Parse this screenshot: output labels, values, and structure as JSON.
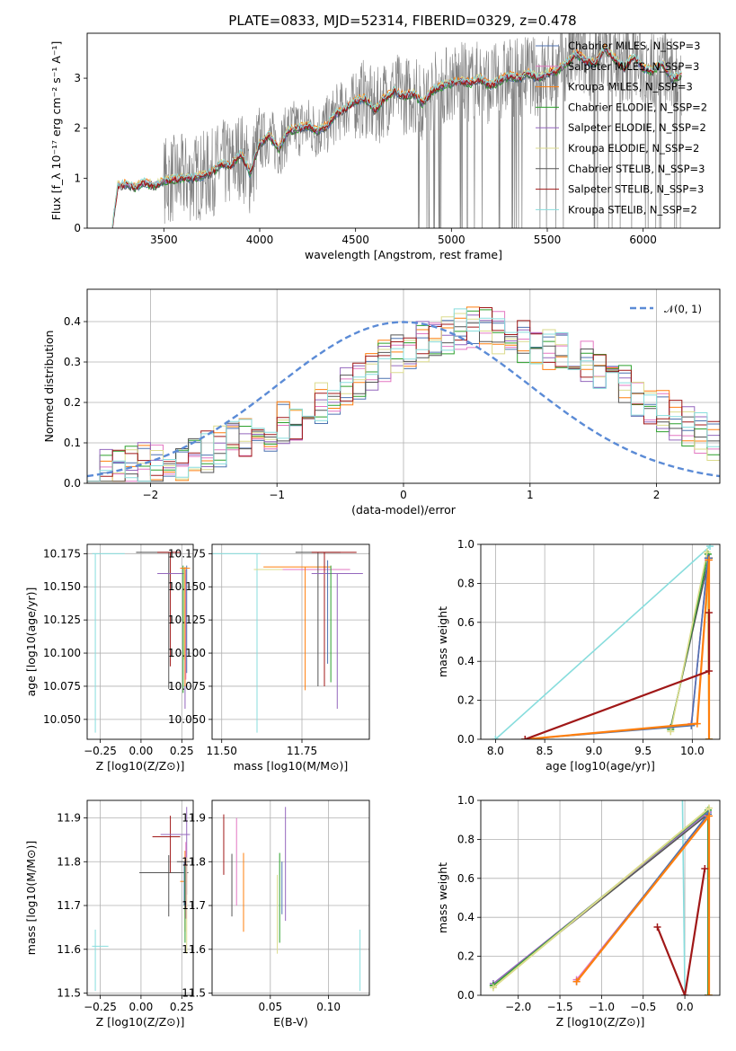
{
  "title": "PLATE=0833, MJD=52314, FIBERID=0329, z=0.478",
  "colors": {
    "Chabrier MILES": "#4c72b0",
    "Salpeter MILES": "#e377c2",
    "Kroupa MILES": "#ff7f0e",
    "Chabrier ELODIE": "#2ca02c",
    "Salpeter ELODIE": "#9467bd",
    "Kroupa ELODIE": "#dbdb8d",
    "Chabrier STELIB": "#555555",
    "Salpeter STELIB": "#a01818",
    "Kroupa STELIB": "#88dddd",
    "data": "#808080",
    "gauss": "#5b8bd6"
  },
  "chart_data": [
    {
      "type": "line",
      "xlabel": "wavelength [Angstrom, rest frame]",
      "ylabel": "Flux [f_λ 10⁻¹⁷ erg cm⁻² s⁻¹ A⁻¹]",
      "xlim": [
        3100,
        6400
      ],
      "ylim": [
        0,
        3.9
      ],
      "xticks": [
        "3500",
        "4000",
        "4500",
        "5000",
        "5500",
        "6000"
      ],
      "yticks": [
        "0",
        "1",
        "2",
        "3"
      ],
      "legend_position": "upper-right",
      "legend": [
        "Chabrier MILES, N_SSP=3",
        "Salpeter MILES, N_SSP=3",
        "Kroupa MILES, N_SSP=3",
        "Chabrier ELODIE, N_SSP=2",
        "Salpeter ELODIE, N_SSP=2",
        "Kroupa ELODIE, N_SSP=2",
        "Chabrier STELIB, N_SSP=3",
        "Salpeter STELIB, N_SSP=3",
        "Kroupa STELIB, N_SSP=2"
      ],
      "model_continuum": {
        "x": [
          3230,
          3260,
          3300,
          3350,
          3400,
          3450,
          3500,
          3550,
          3600,
          3650,
          3700,
          3750,
          3800,
          3850,
          3900,
          3950,
          4000,
          4050,
          4100,
          4150,
          4200,
          4250,
          4300,
          4350,
          4400,
          4450,
          4500,
          4550,
          4600,
          4650,
          4700,
          4750,
          4800,
          4850,
          4900,
          4950,
          5000,
          5050,
          5100,
          5150,
          5200,
          5250,
          5300,
          5350,
          5400,
          5450,
          5500,
          5550,
          5600,
          5650,
          5700,
          5750,
          5800,
          5850,
          5900,
          5950,
          6000,
          6050,
          6100,
          6150,
          6200
        ],
        "y": [
          0.0,
          0.85,
          0.88,
          0.82,
          0.92,
          0.85,
          0.95,
          0.98,
          1.0,
          1.0,
          1.05,
          1.1,
          1.3,
          1.25,
          1.5,
          1.1,
          1.7,
          1.85,
          1.6,
          1.95,
          2.0,
          2.05,
          1.95,
          2.05,
          2.3,
          2.4,
          2.55,
          2.6,
          2.35,
          2.6,
          2.75,
          2.65,
          2.7,
          2.5,
          2.75,
          2.85,
          2.9,
          2.95,
          2.9,
          3.0,
          2.85,
          2.95,
          3.05,
          3.0,
          3.1,
          3.0,
          3.1,
          3.15,
          3.3,
          3.5,
          3.35,
          3.3,
          3.6,
          3.4,
          3.2,
          3.45,
          3.2,
          3.15,
          3.3,
          3.0,
          3.05
        ]
      },
      "data_range": [
        3230,
        6200
      ]
    },
    {
      "type": "histogram",
      "xlabel": "(data-model)/error",
      "ylabel": "Normed distribution",
      "xlim": [
        -2.5,
        2.5
      ],
      "ylim": [
        0,
        0.48
      ],
      "xticks": [
        "−2",
        "−1",
        "0",
        "1",
        "2"
      ],
      "yticks": [
        "0.0",
        "0.1",
        "0.2",
        "0.3",
        "0.4"
      ],
      "bin_edges_start": -2.5,
      "bin_width": 0.1,
      "hist_mean": [
        0.02,
        0.03,
        0.03,
        0.04,
        0.05,
        0.05,
        0.06,
        0.06,
        0.07,
        0.08,
        0.09,
        0.1,
        0.11,
        0.12,
        0.13,
        0.15,
        0.16,
        0.18,
        0.2,
        0.22,
        0.24,
        0.26,
        0.28,
        0.3,
        0.32,
        0.33,
        0.35,
        0.36,
        0.37,
        0.38,
        0.39,
        0.38,
        0.37,
        0.36,
        0.35,
        0.34,
        0.33,
        0.32,
        0.31,
        0.3,
        0.28,
        0.26,
        0.24,
        0.22,
        0.2,
        0.18,
        0.16,
        0.14,
        0.12,
        0.1
      ],
      "legend": [
        "𝒩(0, 1)"
      ],
      "legend_position": "upper-right"
    },
    {
      "type": "errorbar",
      "xlabel": "Z [log10(Z/Z⊙)]",
      "ylabel": "age  [log10(age/yr)]",
      "xlim": [
        -0.33,
        0.32
      ],
      "ylim": [
        10.035,
        10.182
      ],
      "xticks": [
        "−0.25",
        "0.00",
        "0.25"
      ],
      "yticks": [
        "10.050",
        "10.075",
        "10.100",
        "10.125",
        "10.150",
        "10.175"
      ]
    },
    {
      "type": "errorbar",
      "xlabel": "mass [log10(M/M⊙)]",
      "xlim": [
        11.47,
        11.96
      ],
      "ylim": [
        10.035,
        10.182
      ],
      "xticks": [
        "11.50",
        "11.75"
      ],
      "yticks": [
        "10.050",
        "10.075",
        "10.100",
        "10.125",
        "10.150",
        "10.175"
      ]
    },
    {
      "type": "line",
      "xlabel": "age  [log10(age/yr)]",
      "ylabel": "mass weight",
      "xlim": [
        7.85,
        10.28
      ],
      "ylim": [
        0,
        1
      ],
      "xticks": [
        "8.0",
        "8.5",
        "9.0",
        "9.5",
        "10.0"
      ],
      "yticks": [
        "0.0",
        "0.2",
        "0.4",
        "0.6",
        "0.8",
        "1.0"
      ]
    },
    {
      "type": "errorbar",
      "xlabel": "Z [log10(Z/Z⊙)]",
      "ylabel": "mass [log10(M/M⊙)]",
      "xlim": [
        -0.33,
        0.32
      ],
      "ylim": [
        11.495,
        11.94
      ],
      "xticks": [
        "−0.25",
        "0.00",
        "0.25"
      ],
      "yticks": [
        "11.5",
        "11.6",
        "11.7",
        "11.8",
        "11.9"
      ]
    },
    {
      "type": "errorbar",
      "xlabel": "E(B-V)",
      "xlim": [
        0.0,
        0.135
      ],
      "ylim": [
        11.495,
        11.94
      ],
      "xticks": [
        "0.05",
        "0.10"
      ],
      "yticks": [
        "11.5",
        "11.6",
        "11.7",
        "11.8",
        "11.9"
      ]
    },
    {
      "type": "line",
      "xlabel": "Z [log10(Z/Z⊙)]",
      "ylabel": "mass weight",
      "xlim": [
        -2.45,
        0.42
      ],
      "ylim": [
        0,
        1
      ],
      "xticks": [
        "−2.0",
        "−1.5",
        "−1.0",
        "−0.5",
        "0.0"
      ],
      "yticks": [
        "0.0",
        "0.2",
        "0.4",
        "0.6",
        "0.8",
        "1.0"
      ]
    }
  ]
}
